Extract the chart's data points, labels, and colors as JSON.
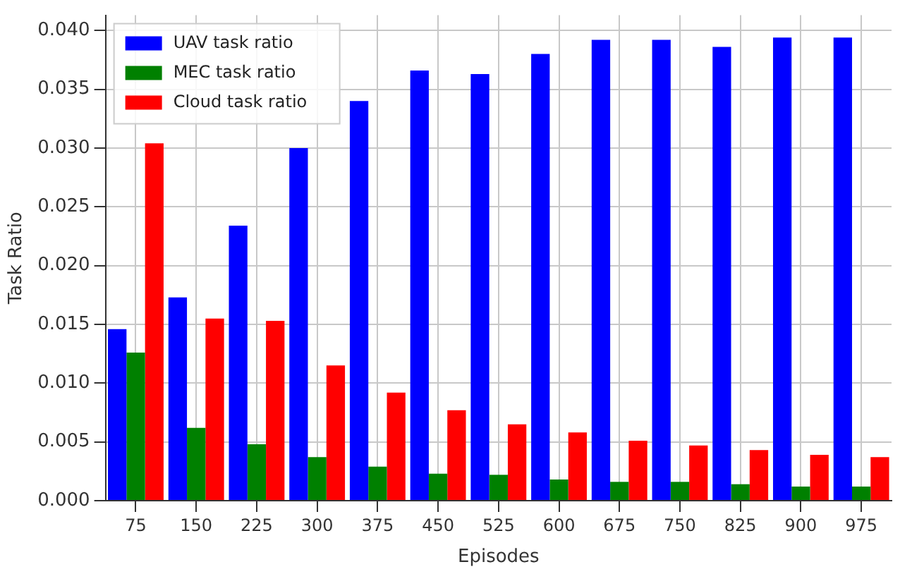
{
  "chart_data": {
    "type": "bar",
    "xlabel": "Episodes",
    "ylabel": "Task Ratio",
    "categories": [
      "75",
      "150",
      "225",
      "300",
      "375",
      "450",
      "525",
      "600",
      "675",
      "750",
      "825",
      "900",
      "975"
    ],
    "series": [
      {
        "name": "UAV task ratio",
        "color": "#0000ff",
        "values": [
          0.0146,
          0.0173,
          0.0234,
          0.03,
          0.034,
          0.0366,
          0.0363,
          0.038,
          0.0392,
          0.0392,
          0.0386,
          0.0394,
          0.0394
        ]
      },
      {
        "name": "MEC task ratio",
        "color": "#008000",
        "values": [
          0.0126,
          0.0062,
          0.0048,
          0.0037,
          0.0029,
          0.0023,
          0.0022,
          0.0018,
          0.0016,
          0.0016,
          0.0014,
          0.0012,
          0.0012
        ]
      },
      {
        "name": "Cloud task ratio",
        "color": "#ff0000",
        "values": [
          0.0304,
          0.0155,
          0.0153,
          0.0115,
          0.0092,
          0.0077,
          0.0065,
          0.0058,
          0.0051,
          0.0047,
          0.0043,
          0.0039,
          0.0037
        ]
      }
    ],
    "ylim": [
      0,
      0.0413
    ],
    "yticks": [
      {
        "value": 0,
        "label": "0.000"
      },
      {
        "value": 0.005,
        "label": "0.005"
      },
      {
        "value": 0.01,
        "label": "0.010"
      },
      {
        "value": 0.015,
        "label": "0.015"
      },
      {
        "value": 0.02,
        "label": "0.020"
      },
      {
        "value": 0.025,
        "label": "0.025"
      },
      {
        "value": 0.03,
        "label": "0.030"
      },
      {
        "value": 0.035,
        "label": "0.035"
      },
      {
        "value": 0.04,
        "label": "0.040"
      }
    ],
    "grid": true,
    "legend": "top left"
  }
}
